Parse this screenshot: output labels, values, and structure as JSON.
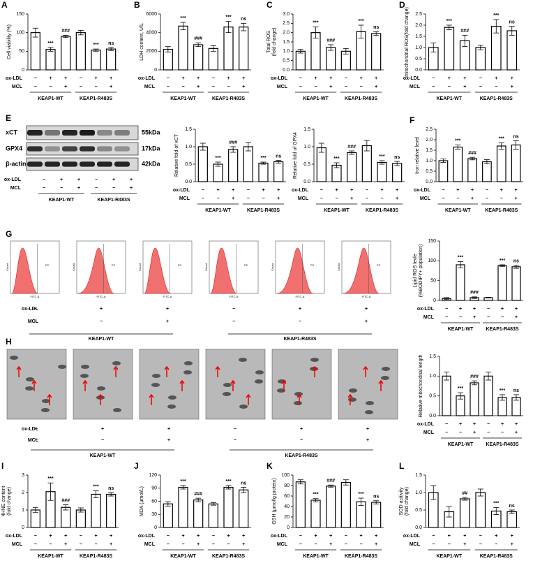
{
  "treatments": {
    "rows": [
      {
        "name": "ox-LDL",
        "signs": [
          "−",
          "+",
          "+",
          "−",
          "+",
          "+"
        ]
      },
      {
        "name": "MCL",
        "signs": [
          "−",
          "−",
          "+",
          "−",
          "−",
          "+"
        ]
      }
    ],
    "groups": [
      "KEAP1-WT",
      "KEAP1-R483S"
    ]
  },
  "blot": {
    "label": "E",
    "proteins": [
      "xCT",
      "GPX4",
      "β-actin"
    ],
    "sizes": [
      "55kDa",
      "17kDa",
      "42kDa"
    ]
  },
  "flow": {
    "label": "G",
    "ylabel": "Count",
    "xlabel": "FITC-A",
    "gate": "P2"
  },
  "tem": {
    "label": "H"
  },
  "chart_data": [
    {
      "type": "bar",
      "label": "A",
      "ylabel": [
        "Cell viability (%)"
      ],
      "categories": [
        null,
        null,
        null,
        null,
        null,
        null
      ],
      "values": [
        100,
        55,
        90,
        100,
        53,
        56
      ],
      "errors": [
        12,
        5,
        3,
        6,
        3,
        4
      ],
      "annotations": [
        null,
        "***",
        "###",
        null,
        "***",
        "ns"
      ],
      "ylim": [
        0,
        150
      ],
      "yticks": [
        0,
        50,
        100,
        150
      ],
      "color": "#ffffff"
    },
    {
      "type": "bar",
      "label": "B",
      "ylabel": [
        "LDH content, U/L"
      ],
      "categories": [
        null,
        null,
        null,
        null,
        null,
        null
      ],
      "values": [
        2200,
        4700,
        2700,
        2300,
        4600,
        4600
      ],
      "errors": [
        300,
        400,
        200,
        300,
        600,
        400
      ],
      "annotations": [
        null,
        "***",
        "###",
        null,
        "***",
        "ns"
      ],
      "ylim": [
        0,
        6000
      ],
      "yticks": [
        0,
        2000,
        4000,
        6000
      ],
      "color": "#ffffff"
    },
    {
      "type": "bar",
      "label": "C",
      "ylabel": [
        "Total ROS",
        "(fold change)"
      ],
      "categories": [
        null,
        null,
        null,
        null,
        null,
        null
      ],
      "values": [
        1.0,
        2.0,
        1.2,
        1.0,
        2.05,
        1.95
      ],
      "errors": [
        0.1,
        0.3,
        0.15,
        0.15,
        0.35,
        0.1
      ],
      "annotations": [
        null,
        "***",
        "###",
        null,
        "***",
        "ns"
      ],
      "ylim": [
        0,
        3
      ],
      "yticks": [
        {
          "value": 0,
          "label": "0.0"
        },
        0.5,
        {
          "value": 1,
          "label": "1.0"
        },
        1.5,
        {
          "value": 2,
          "label": "2.0"
        },
        2.5,
        {
          "value": 3,
          "label": "3.0"
        }
      ],
      "color": "#ffffff"
    },
    {
      "type": "bar",
      "label": "D",
      "ylabel": [
        "mitochondrial ROS(fold change)"
      ],
      "categories": [
        null,
        null,
        null,
        null,
        null,
        null
      ],
      "values": [
        1.0,
        1.9,
        1.3,
        1.0,
        1.95,
        1.75
      ],
      "errors": [
        0.2,
        0.1,
        0.25,
        0.1,
        0.3,
        0.2
      ],
      "annotations": [
        null,
        "***",
        "###",
        null,
        "***",
        "ns"
      ],
      "ylim": [
        0,
        2.5
      ],
      "yticks": [
        {
          "value": 0,
          "label": "0.0"
        },
        0.5,
        {
          "value": 1,
          "label": "1.0"
        },
        1.5,
        {
          "value": 2,
          "label": "2.0"
        },
        2.5
      ],
      "color": "#ffffff"
    },
    {
      "type": "bar",
      "ylabel": [
        "Relative fold of xCT"
      ],
      "categories": [
        null,
        null,
        null,
        null,
        null,
        null
      ],
      "values": [
        1.0,
        0.5,
        0.92,
        1.0,
        0.53,
        0.57
      ],
      "errors": [
        0.1,
        0.06,
        0.08,
        0.12,
        0.03,
        0.04
      ],
      "annotations": [
        null,
        "***",
        "###",
        null,
        "***",
        "ns"
      ],
      "ylim": [
        0,
        1.5
      ],
      "yticks": [
        {
          "value": 0,
          "label": "0.0"
        },
        0.5,
        {
          "value": 1,
          "label": "1.0"
        },
        1.5
      ],
      "color": "#ffffff"
    },
    {
      "type": "bar",
      "ylabel": [
        "Relative fold of GPX4"
      ],
      "categories": [
        null,
        null,
        null,
        null,
        null,
        null
      ],
      "values": [
        0.97,
        0.47,
        0.83,
        1.03,
        0.55,
        0.52
      ],
      "errors": [
        0.13,
        0.07,
        0.05,
        0.15,
        0.05,
        0.06
      ],
      "annotations": [
        null,
        "***",
        "###",
        null,
        "***",
        "ns"
      ],
      "ylim": [
        0,
        1.5
      ],
      "yticks": [
        {
          "value": 0,
          "label": "0.0"
        },
        0.5,
        {
          "value": 1,
          "label": "1.0"
        },
        1.5
      ],
      "color": "#ffffff"
    },
    {
      "type": "bar",
      "label": "F",
      "ylabel": [
        "Iron relative level"
      ],
      "categories": [
        null,
        null,
        null,
        null,
        null,
        null
      ],
      "values": [
        1.0,
        1.65,
        1.1,
        0.95,
        1.7,
        1.75
      ],
      "errors": [
        0.08,
        0.1,
        0.06,
        0.1,
        0.15,
        0.2
      ],
      "annotations": [
        null,
        "***",
        "###",
        null,
        "***",
        "ns"
      ],
      "ylim": [
        0,
        2.5
      ],
      "yticks": [
        {
          "value": 0,
          "label": "0.0"
        },
        0.5,
        {
          "value": 1,
          "label": "1.0"
        },
        1.5,
        {
          "value": 2,
          "label": "2.0"
        },
        2.5
      ],
      "color": "#ffffff"
    },
    {
      "type": "bar",
      "ylabel": [
        "Lipid ROS levle",
        "(%BODIPY+ population)"
      ],
      "categories": [
        null,
        null,
        null,
        null,
        null,
        null
      ],
      "values": [
        5,
        90,
        7,
        7,
        88,
        85
      ],
      "errors": [
        2,
        8,
        2,
        1,
        2,
        4
      ],
      "annotations": [
        null,
        "***",
        "###",
        null,
        "***",
        "ns"
      ],
      "ylim": [
        0,
        150
      ],
      "yticks": [
        0,
        50,
        100,
        150
      ],
      "color": "#ffffff"
    },
    {
      "type": "bar",
      "ylabel": [
        "Relative mitochondrial length"
      ],
      "categories": [
        null,
        null,
        null,
        null,
        null,
        null
      ],
      "values": [
        1.0,
        0.5,
        0.83,
        1.0,
        0.46,
        0.46
      ],
      "errors": [
        0.1,
        0.08,
        0.05,
        0.1,
        0.07,
        0.07
      ],
      "annotations": [
        null,
        "***",
        "###",
        null,
        "***",
        "ns"
      ],
      "ylim": [
        0,
        1.5
      ],
      "yticks": [
        {
          "value": 0,
          "label": "0.0"
        },
        0.5,
        {
          "value": 1,
          "label": "1.0"
        },
        1.5
      ],
      "color": "#ffffff"
    },
    {
      "type": "bar",
      "label": "I",
      "ylabel": [
        "4HNE content",
        "(fold change)"
      ],
      "categories": [
        null,
        null,
        null,
        null,
        null,
        null
      ],
      "values": [
        1.0,
        2.05,
        1.15,
        1.0,
        1.9,
        1.9
      ],
      "errors": [
        0.15,
        0.5,
        0.15,
        0.12,
        0.2,
        0.1
      ],
      "annotations": [
        null,
        "***",
        "###",
        null,
        "***",
        "ns"
      ],
      "ylim": [
        0,
        3
      ],
      "yticks": [
        0,
        1,
        2,
        3
      ],
      "color": "#ffffff"
    },
    {
      "type": "bar",
      "label": "J",
      "ylabel": [
        "MDA (μmol/L)"
      ],
      "categories": [
        null,
        null,
        null,
        null,
        null,
        null
      ],
      "values": [
        54,
        92,
        63,
        54,
        92,
        86
      ],
      "errors": [
        5,
        4,
        4,
        3,
        4,
        6
      ],
      "annotations": [
        null,
        "***",
        "###",
        null,
        "***",
        "ns"
      ],
      "ylim": [
        0,
        120
      ],
      "yticks": [
        0,
        30,
        60,
        90,
        120
      ],
      "color": "#ffffff"
    },
    {
      "type": "bar",
      "label": "K",
      "ylabel": [
        "GSH (μmol/g protein)"
      ],
      "categories": [
        null,
        null,
        null,
        null,
        null,
        null
      ],
      "values": [
        87,
        52,
        79,
        86,
        49,
        48
      ],
      "errors": [
        4,
        3,
        2,
        5,
        7,
        3
      ],
      "annotations": [
        null,
        "***",
        "###",
        null,
        "***",
        "ns"
      ],
      "ylim": [
        0,
        100
      ],
      "yticks": [
        0,
        20,
        40,
        60,
        80,
        100
      ],
      "color": "#ffffff"
    },
    {
      "type": "bar",
      "label": "L",
      "ylabel": [
        "SOD acitivity",
        "(fold change)"
      ],
      "categories": [
        null,
        null,
        null,
        null,
        null,
        null
      ],
      "values": [
        1.0,
        0.45,
        0.82,
        1.0,
        0.47,
        0.45
      ],
      "errors": [
        0.2,
        0.15,
        0.04,
        0.1,
        0.1,
        0.05
      ],
      "annotations": [
        null,
        null,
        "##",
        null,
        "***",
        "ns"
      ],
      "ylim": [
        0,
        1.5
      ],
      "yticks": [
        {
          "value": 0,
          "label": "0.0"
        },
        0.5,
        {
          "value": 1,
          "label": "1.0"
        },
        1.5
      ],
      "color": "#ffffff"
    }
  ]
}
